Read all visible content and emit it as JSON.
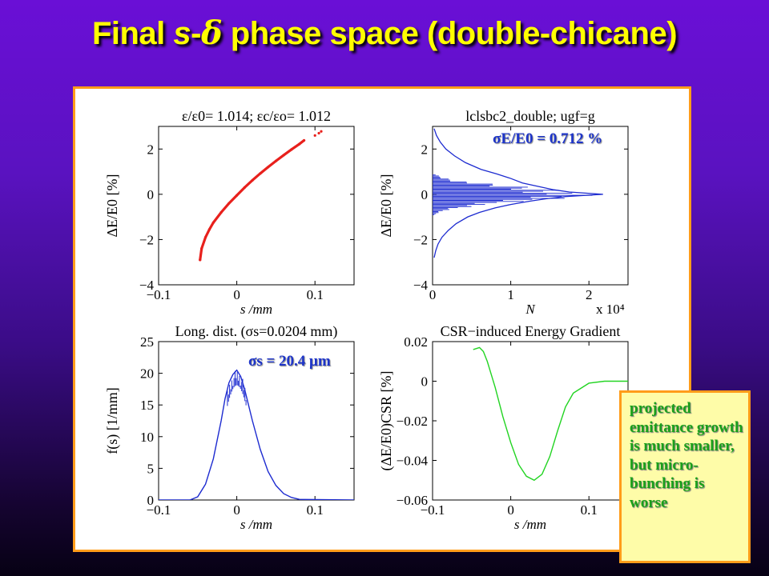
{
  "slide": {
    "title_prefix": "Final ",
    "title_s": "s",
    "title_dash": "-",
    "title_delta": "δ",
    "title_suffix": " phase space (double-chicane)",
    "note": "projected emittance growth is much smaller, but micro-bunching is worse"
  },
  "colors": {
    "title": "#ffff00",
    "panel_border": "#ff9c1a",
    "note_bg": "#fefca8",
    "note_text": "#1aa01a",
    "annotation": "#1d34c9",
    "scatter": "#e8201c",
    "hist": "#1d2bd0",
    "csr": "#22d422"
  },
  "chart_data": [
    {
      "type": "scatter",
      "title": "ε/ε0= 1.014; εc/εo= 1.012",
      "xlabel": "s /mm",
      "ylabel": "ΔE/E0 [%]",
      "xlim": [
        -0.1,
        0.15
      ],
      "ylim": [
        -4,
        3
      ],
      "xticks": [
        "−0.1",
        "0",
        "0.1"
      ],
      "yticks": [
        "−4",
        "−2",
        "0",
        "2"
      ],
      "x": [
        -0.047,
        -0.045,
        -0.04,
        -0.035,
        -0.03,
        -0.02,
        -0.01,
        0.0,
        0.01,
        0.02,
        0.03,
        0.04,
        0.05,
        0.06,
        0.07,
        0.08,
        0.086,
        0.1,
        0.105,
        0.108
      ],
      "y": [
        -2.9,
        -2.4,
        -1.9,
        -1.55,
        -1.25,
        -0.8,
        -0.4,
        -0.05,
        0.3,
        0.62,
        0.92,
        1.2,
        1.47,
        1.73,
        1.98,
        2.22,
        2.38,
        2.6,
        2.7,
        2.78
      ]
    },
    {
      "type": "line",
      "title": "lclsbc2_double; ugf=g",
      "xlabel": "N",
      "ylabel": "ΔE/E0 [%]",
      "annotation": "σE/E0 = 0.712 %",
      "x_multiplier": "x 10⁴",
      "xlim": [
        0,
        2.5
      ],
      "ylim": [
        -4,
        3
      ],
      "xticks": [
        "0",
        "1",
        "2"
      ],
      "yticks": [
        "−4",
        "−2",
        "0",
        "2"
      ],
      "y": [
        2.9,
        2.6,
        2.3,
        2.0,
        1.7,
        1.4,
        1.1,
        0.9,
        0.7,
        0.5,
        0.35,
        0.2,
        0.1,
        0.0,
        -0.1,
        -0.2,
        -0.3,
        -0.45,
        -0.6,
        -0.8,
        -1.0,
        -1.3,
        -1.6,
        -1.9,
        -2.2,
        -2.5,
        -2.8
      ],
      "x": [
        0.02,
        0.05,
        0.1,
        0.17,
        0.28,
        0.42,
        0.62,
        0.82,
        1.0,
        1.15,
        1.35,
        1.55,
        1.75,
        2.18,
        1.7,
        1.45,
        1.25,
        1.0,
        0.8,
        0.6,
        0.45,
        0.3,
        0.2,
        0.12,
        0.07,
        0.04,
        0.02
      ]
    },
    {
      "type": "line",
      "title": "Long. dist. (σs=0.0204 mm)",
      "xlabel": "s /mm",
      "ylabel": "f(s) [1/mm]",
      "annotation": "σs = 20.4 μm",
      "xlim": [
        -0.1,
        0.15
      ],
      "ylim": [
        0,
        25
      ],
      "xticks": [
        "−0.1",
        "0",
        "0.1"
      ],
      "yticks": [
        "0",
        "5",
        "10",
        "15",
        "20",
        "25"
      ],
      "x": [
        -0.1,
        -0.06,
        -0.05,
        -0.04,
        -0.03,
        -0.02,
        -0.015,
        -0.01,
        -0.005,
        0.0,
        0.005,
        0.01,
        0.015,
        0.02,
        0.03,
        0.04,
        0.05,
        0.06,
        0.07,
        0.08,
        0.15
      ],
      "y": [
        0,
        0,
        0.5,
        2.5,
        6.5,
        12.5,
        16,
        18.5,
        19.8,
        20.5,
        19.5,
        17.5,
        15,
        12.5,
        8,
        4.5,
        2.3,
        1.0,
        0.4,
        0.1,
        0
      ]
    },
    {
      "type": "line",
      "title": "CSR−induced Energy Gradient",
      "xlabel": "s /mm",
      "ylabel": "(ΔE/E0)CSR [%]",
      "xlim": [
        -0.1,
        0.15
      ],
      "ylim": [
        -0.06,
        0.02
      ],
      "xticks": [
        "−0.1",
        "0",
        "0.1"
      ],
      "yticks": [
        "−0.06",
        "−0.04",
        "−0.02",
        "0",
        "0.02"
      ],
      "x": [
        -0.048,
        -0.04,
        -0.035,
        -0.03,
        -0.02,
        -0.01,
        0.0,
        0.01,
        0.02,
        0.03,
        0.04,
        0.05,
        0.06,
        0.07,
        0.08,
        0.1,
        0.12,
        0.15
      ],
      "y": [
        0.016,
        0.017,
        0.015,
        0.01,
        -0.003,
        -0.018,
        -0.031,
        -0.042,
        -0.048,
        -0.05,
        -0.047,
        -0.038,
        -0.025,
        -0.013,
        -0.006,
        -0.001,
        0.0,
        0.0
      ]
    }
  ]
}
